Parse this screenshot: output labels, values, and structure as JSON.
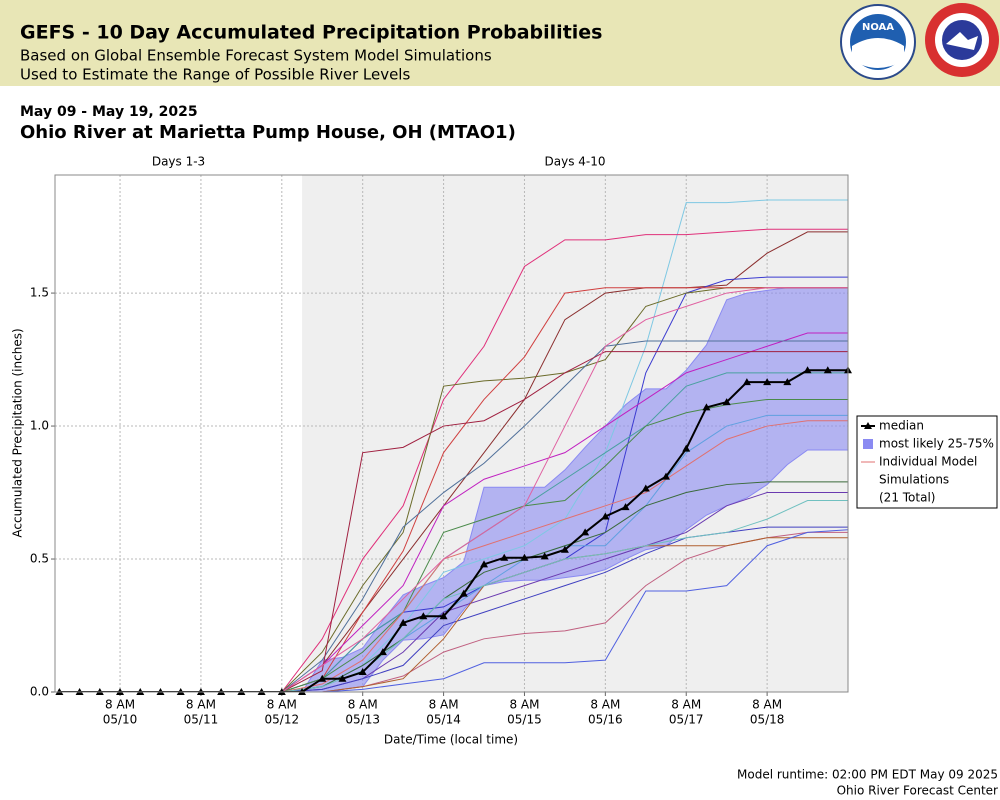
{
  "header": {
    "title": "GEFS - 10 Day Accumulated Precipitation Probabilities",
    "subtitle_lines": [
      "Based on Global Ensemble Forecast System Model Simulations",
      "Used to Estimate the Range of Possible River Levels"
    ],
    "logo": "NOAA"
  },
  "chart_data": {
    "type": "line",
    "date_range": "May 09 - May 19, 2025",
    "title": "Ohio River at Marietta Pump House, OH (MTAO1)",
    "period_labels": [
      "Days 1-3",
      "Days 4-10"
    ],
    "x_label": "Date/Time (local time)",
    "y_label": "Accumulated Precipitation (inches)",
    "x": [
      -18,
      -12,
      -6,
      0,
      6,
      12,
      18,
      24,
      30,
      36,
      42,
      48,
      54,
      60,
      66,
      72,
      78,
      84,
      90,
      96,
      102,
      108,
      114,
      120,
      126,
      132,
      138,
      144,
      150,
      156,
      162,
      168,
      174,
      180,
      186,
      192,
      198,
      204,
      210,
      216
    ],
    "xlim": [
      -19.3,
      216
    ],
    "xticks": [
      {
        "value": 0,
        "label": [
          "8 AM",
          "05/10"
        ]
      },
      {
        "value": 24,
        "label": [
          "8 AM",
          "05/11"
        ]
      },
      {
        "value": 48,
        "label": [
          "8 AM",
          "05/12"
        ]
      },
      {
        "value": 72,
        "label": [
          "8 AM",
          "05/13"
        ]
      },
      {
        "value": 96,
        "label": [
          "8 AM",
          "05/14"
        ]
      },
      {
        "value": 120,
        "label": [
          "8 AM",
          "05/15"
        ]
      },
      {
        "value": 144,
        "label": [
          "8 AM",
          "05/16"
        ]
      },
      {
        "value": 168,
        "label": [
          "8 AM",
          "05/17"
        ]
      },
      {
        "value": 192,
        "label": [
          "8 AM",
          "05/18"
        ]
      }
    ],
    "ylim": [
      0,
      1.944
    ],
    "yticks": [
      {
        "value": 0,
        "label": "0.0"
      },
      0.5,
      {
        "value": 1,
        "label": "1.0"
      },
      1.5
    ],
    "grid": true,
    "legend": "right",
    "series": [
      {
        "name": "median",
        "color": "#000000",
        "values": [
          0,
          0,
          0,
          0,
          0,
          0,
          0,
          0,
          0,
          0,
          0,
          0,
          0,
          0.05,
          0.05,
          0.075,
          0.15,
          0.26,
          0.285,
          0.285,
          0.37,
          0.48,
          0.505,
          0.505,
          0.51,
          0.535,
          0.6,
          0.66,
          0.695,
          0.765,
          0.81,
          0.915,
          1.07,
          1.09,
          1.165,
          1.165,
          1.165,
          1.21,
          1.21,
          1.21
        ]
      }
    ],
    "band": {
      "name": "most likely 25-75%",
      "color": "#8a8af2",
      "upper": [
        null,
        null,
        null,
        null,
        null,
        null,
        null,
        null,
        null,
        null,
        null,
        null,
        0,
        0.12,
        0.13,
        0.165,
        0.27,
        0.365,
        0.4,
        0.43,
        0.49,
        0.77,
        0.77,
        0.77,
        0.77,
        0.835,
        0.92,
        1.0,
        1.08,
        1.14,
        1.14,
        1.21,
        1.305,
        1.475,
        1.5,
        1.51,
        1.52,
        1.52,
        1.52,
        1.52
      ],
      "lower": [
        null,
        null,
        null,
        null,
        null,
        null,
        null,
        null,
        null,
        null,
        null,
        null,
        0,
        0,
        0.01,
        0.02,
        0.12,
        0.195,
        0.2,
        0.215,
        0.31,
        0.4,
        0.415,
        0.42,
        0.42,
        0.43,
        0.44,
        0.46,
        0.5,
        0.535,
        0.55,
        0.61,
        0.665,
        0.7,
        0.73,
        0.78,
        0.855,
        0.91,
        0.91,
        0.91
      ]
    },
    "simulations": {
      "label_lines": [
        "Individual Model",
        "Simulations",
        "(21 Total)"
      ],
      "legend_color": "#e07070",
      "x": [
        48,
        60,
        72,
        84,
        96,
        108,
        120,
        132,
        144,
        156,
        168,
        180,
        192,
        204,
        216
      ],
      "series": [
        {
          "color": "#7ec8e3",
          "values": [
            0,
            0.02,
            0.1,
            0.25,
            0.45,
            0.5,
            0.55,
            0.65,
            0.9,
            1.3,
            1.84,
            1.84,
            1.85,
            1.85,
            1.85
          ]
        },
        {
          "color": "#e0307a",
          "values": [
            0,
            0.2,
            0.5,
            0.7,
            1.1,
            1.3,
            1.6,
            1.7,
            1.7,
            1.72,
            1.72,
            1.73,
            1.74,
            1.74,
            1.74
          ]
        },
        {
          "color": "#8b2e2e",
          "values": [
            0,
            0.1,
            0.3,
            0.5,
            0.7,
            0.9,
            1.1,
            1.4,
            1.5,
            1.52,
            1.52,
            1.53,
            1.65,
            1.73,
            1.73
          ]
        },
        {
          "color": "#3a3ad0",
          "values": [
            0,
            0.05,
            0.2,
            0.3,
            0.32,
            0.4,
            0.45,
            0.5,
            0.6,
            1.2,
            1.5,
            1.55,
            1.56,
            1.56,
            1.56
          ]
        },
        {
          "color": "#6b6b2a",
          "values": [
            0,
            0.15,
            0.4,
            0.6,
            1.15,
            1.17,
            1.18,
            1.2,
            1.25,
            1.45,
            1.5,
            1.52,
            1.52,
            1.52,
            1.52
          ]
        },
        {
          "color": "#d04040",
          "values": [
            0,
            0.05,
            0.3,
            0.53,
            0.9,
            1.1,
            1.26,
            1.5,
            1.52,
            1.52,
            1.52,
            1.52,
            1.52,
            1.52,
            1.52
          ]
        },
        {
          "color": "#c020c0",
          "values": [
            0,
            0.1,
            0.25,
            0.4,
            0.7,
            0.8,
            0.85,
            0.9,
            1.0,
            1.1,
            1.2,
            1.25,
            1.3,
            1.35,
            1.35
          ]
        },
        {
          "color": "#50709a",
          "values": [
            0,
            0.12,
            0.35,
            0.62,
            0.75,
            0.86,
            1.0,
            1.15,
            1.3,
            1.32,
            1.32,
            1.32,
            1.32,
            1.32,
            1.32
          ]
        },
        {
          "color": "#a02040",
          "values": [
            0,
            0.08,
            0.9,
            0.92,
            1.0,
            1.02,
            1.1,
            1.2,
            1.28,
            1.28,
            1.28,
            1.28,
            1.28,
            1.28,
            1.28
          ]
        },
        {
          "color": "#4aa0a0",
          "values": [
            0,
            0.05,
            0.2,
            0.3,
            0.5,
            0.6,
            0.7,
            0.8,
            0.9,
            1.0,
            1.15,
            1.2,
            1.2,
            1.2,
            1.2
          ]
        },
        {
          "color": "#4a8a4a",
          "values": [
            0,
            0.05,
            0.15,
            0.3,
            0.6,
            0.65,
            0.7,
            0.72,
            0.85,
            1.0,
            1.05,
            1.08,
            1.1,
            1.1,
            1.1
          ]
        },
        {
          "color": "#60a0e0",
          "values": [
            0,
            0.02,
            0.1,
            0.2,
            0.3,
            0.4,
            0.5,
            0.55,
            0.55,
            0.7,
            0.9,
            1.0,
            1.04,
            1.04,
            1.04
          ]
        },
        {
          "color": "#e07070",
          "values": [
            0,
            0.03,
            0.12,
            0.3,
            0.5,
            0.55,
            0.6,
            0.65,
            0.7,
            0.75,
            0.85,
            0.95,
            1.0,
            1.02,
            1.02
          ]
        },
        {
          "color": "#3a6a3a",
          "values": [
            0,
            0.02,
            0.1,
            0.2,
            0.35,
            0.45,
            0.5,
            0.55,
            0.6,
            0.7,
            0.75,
            0.78,
            0.79,
            0.79,
            0.79
          ]
        },
        {
          "color": "#6a3ab0",
          "values": [
            0,
            0.01,
            0.05,
            0.15,
            0.3,
            0.35,
            0.4,
            0.45,
            0.5,
            0.55,
            0.6,
            0.7,
            0.75,
            0.75,
            0.75
          ]
        },
        {
          "color": "#4040c0",
          "values": [
            0,
            0.01,
            0.05,
            0.1,
            0.25,
            0.3,
            0.35,
            0.4,
            0.45,
            0.52,
            0.58,
            0.6,
            0.62,
            0.62,
            0.62
          ]
        },
        {
          "color": "#c06080",
          "values": [
            0,
            0,
            0.02,
            0.06,
            0.15,
            0.2,
            0.22,
            0.23,
            0.26,
            0.4,
            0.5,
            0.55,
            0.58,
            0.6,
            0.6
          ]
        },
        {
          "color": "#b06030",
          "values": [
            0,
            0,
            0.02,
            0.05,
            0.2,
            0.4,
            0.45,
            0.5,
            0.52,
            0.55,
            0.55,
            0.55,
            0.58,
            0.58,
            0.58
          ]
        },
        {
          "color": "#5060e0",
          "values": [
            0,
            0,
            0.01,
            0.03,
            0.05,
            0.11,
            0.11,
            0.11,
            0.12,
            0.38,
            0.38,
            0.4,
            0.55,
            0.6,
            0.61
          ]
        },
        {
          "color": "#70c0c0",
          "values": [
            0,
            0.02,
            0.08,
            0.2,
            0.35,
            0.4,
            0.45,
            0.5,
            0.52,
            0.55,
            0.58,
            0.6,
            0.65,
            0.72,
            0.72
          ]
        },
        {
          "color": "#e060a0",
          "values": [
            0,
            0.1,
            0.2,
            0.35,
            0.5,
            0.6,
            0.7,
            1.0,
            1.3,
            1.4,
            1.45,
            1.5,
            1.52,
            1.52,
            1.52
          ]
        }
      ]
    }
  },
  "footer": [
    "Model runtime: 02:00 PM EDT May 09 2025",
    "Ohio River Forecast Center"
  ]
}
